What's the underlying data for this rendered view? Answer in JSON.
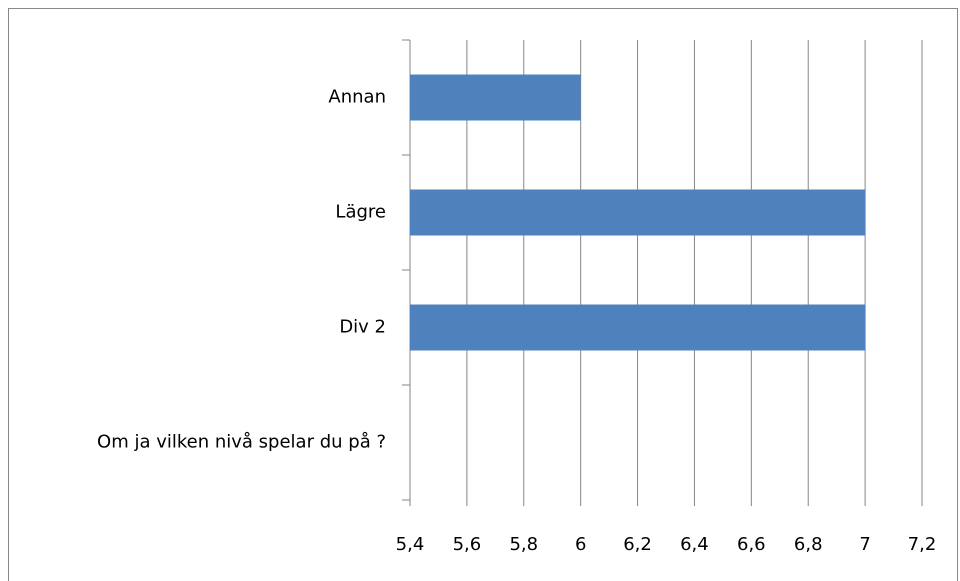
{
  "chart_data": {
    "type": "hbar",
    "categories": [
      "Annan",
      "Lägre",
      "Div 2",
      "Om ja  vilken nivå spelar du på ?"
    ],
    "values": [
      6,
      7,
      7,
      null
    ],
    "color": "#4f81bd",
    "xlim": [
      5.4,
      7.2
    ],
    "xticks": [
      {
        "value": 5.4,
        "label": "5,4"
      },
      {
        "value": 5.6,
        "label": "5,6"
      },
      {
        "value": 5.8,
        "label": "5,8"
      },
      6,
      {
        "value": 6.2,
        "label": "6,2"
      },
      {
        "value": 6.4,
        "label": "6,4"
      },
      {
        "value": 6.6,
        "label": "6,6"
      },
      {
        "value": 6.8,
        "label": "6,8"
      },
      7,
      {
        "value": 7.2,
        "label": "7,2"
      }
    ],
    "grid": true
  }
}
